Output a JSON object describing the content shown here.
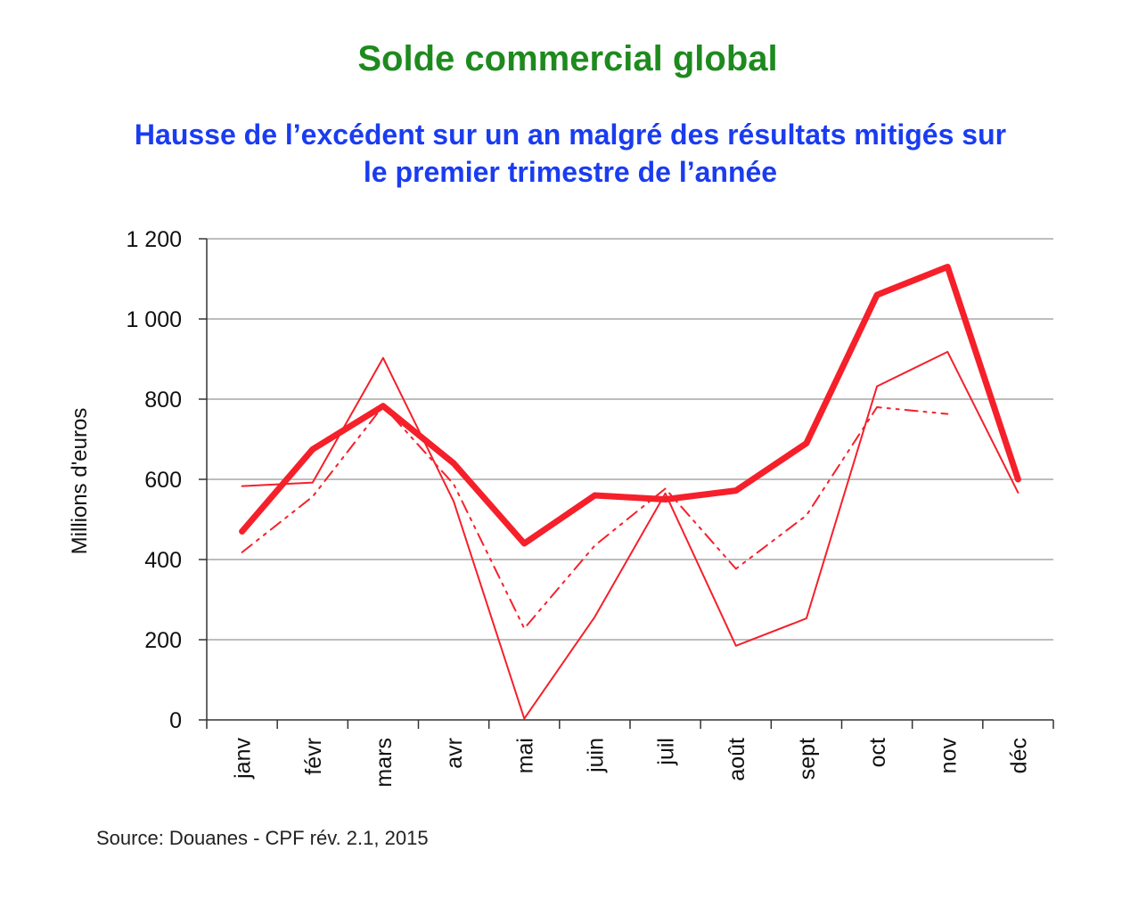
{
  "title": "Solde commercial global",
  "subtitle_line1": "Hausse de l’excédent sur un an malgré des résultats mitigés sur",
  "subtitle_line2": "le premier trimestre de l’année",
  "source": "Source: Douanes - CPF rév. 2.1, 2015",
  "colors": {
    "title": "#1e8a1e",
    "subtitle": "#1a3cf0",
    "series": "#f5202a",
    "grid": "#bdbdbd"
  },
  "chart_data": {
    "type": "line",
    "ylabel": "Millions d'euros",
    "ylim": [
      0,
      1200
    ],
    "yticks": [
      0,
      200,
      400,
      600,
      800,
      1000,
      1200
    ],
    "ytick_labels": [
      "0",
      "200",
      "400",
      "600",
      "800",
      "1 000",
      "1 200"
    ],
    "categories": [
      "janv",
      "févr",
      "mars",
      "avr",
      "mai",
      "juin",
      "juil",
      "août",
      "sept",
      "oct",
      "nov",
      "déc"
    ],
    "grid": true,
    "legend": "none",
    "series": [
      {
        "style": "thick-solid",
        "values": [
          470,
          675,
          783,
          640,
          440,
          560,
          550,
          572,
          690,
          1060,
          1130,
          600
        ]
      },
      {
        "style": "thin-solid",
        "values": [
          583,
          592,
          903,
          545,
          3,
          257,
          565,
          185,
          253,
          832,
          918,
          567
        ]
      },
      {
        "style": "dash-dot",
        "values": [
          418,
          557,
          783,
          588,
          228,
          435,
          577,
          377,
          510,
          780,
          763,
          null
        ]
      }
    ]
  }
}
